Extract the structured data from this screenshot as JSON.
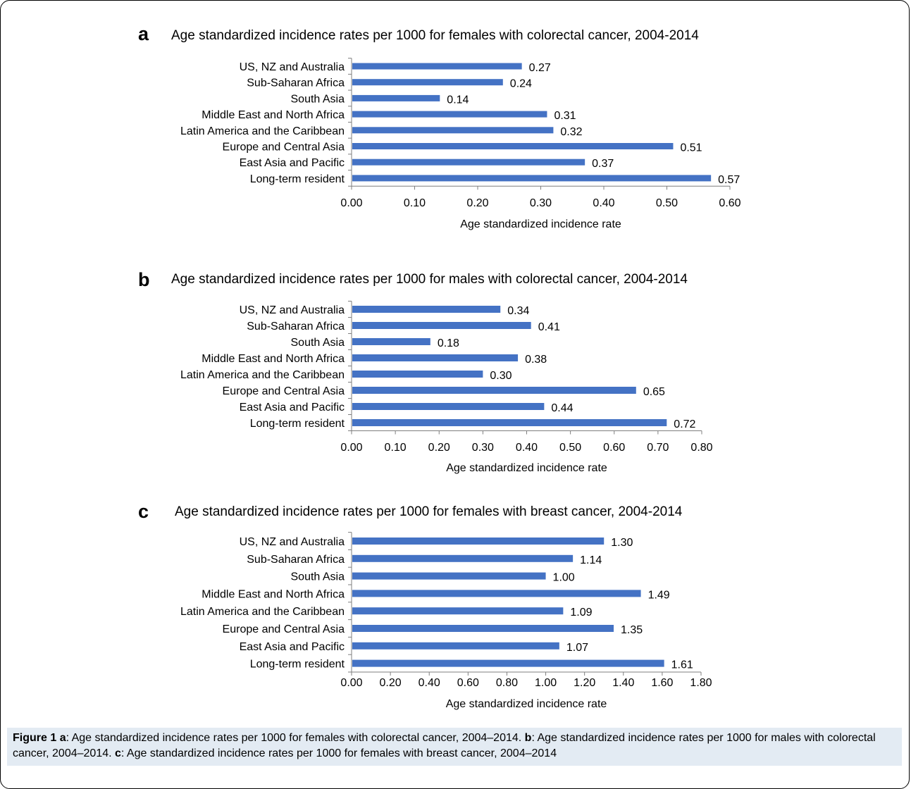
{
  "chart_data": [
    {
      "type": "bar",
      "orientation": "horizontal",
      "panel": "a",
      "title": "Age standardized incidence rates per 1000 for females with colorectal cancer, 2004-2014",
      "xlabel": "Age standardized incidence rate",
      "categories": [
        "US, NZ and Australia",
        "Sub-Saharan Africa",
        "South Asia",
        "Middle East and North Africa",
        "Latin America and the Caribbean",
        "Europe and Central Asia",
        "East Asia and Pacific",
        "Long-term resident"
      ],
      "values": [
        0.27,
        0.24,
        0.14,
        0.31,
        0.32,
        0.51,
        0.37,
        0.57
      ],
      "value_labels": [
        "0.27",
        "0.24",
        "0.14",
        "0.31",
        "0.32",
        "0.51",
        "0.37",
        "0.57"
      ],
      "xlim": [
        0,
        0.6
      ],
      "ticks": [
        "0.00",
        "0.10",
        "0.20",
        "0.30",
        "0.40",
        "0.50",
        "0.60"
      ],
      "grid": false,
      "legend": "none",
      "bar_color": "#4472c4"
    },
    {
      "type": "bar",
      "orientation": "horizontal",
      "panel": "b",
      "title": "Age standardized incidence rates per 1000 for males with colorectal cancer, 2004-2014",
      "xlabel": "Age standardized incidence rate",
      "categories": [
        "US, NZ and Australia",
        "Sub-Saharan Africa",
        "South Asia",
        "Middle East and North Africa",
        "Latin America and the Caribbean",
        "Europe and Central Asia",
        "East Asia and Pacific",
        "Long-term resident"
      ],
      "values": [
        0.34,
        0.41,
        0.18,
        0.38,
        0.3,
        0.65,
        0.44,
        0.72
      ],
      "value_labels": [
        "0.34",
        "0.41",
        "0.18",
        "0.38",
        "0.30",
        "0.65",
        "0.44",
        "0.72"
      ],
      "xlim": [
        0,
        0.8
      ],
      "ticks": [
        "0.00",
        "0.10",
        "0.20",
        "0.30",
        "0.40",
        "0.50",
        "0.60",
        "0.70",
        "0.80"
      ],
      "grid": false,
      "legend": "none",
      "bar_color": "#4472c4"
    },
    {
      "type": "bar",
      "orientation": "horizontal",
      "panel": "c",
      "title": "Age standardized incidence rates per 1000 for females with breast cancer, 2004-2014",
      "xlabel": "Age standardized incidence rate",
      "categories": [
        "US, NZ and Australia",
        "Sub-Saharan Africa",
        "South Asia",
        "Middle East and North Africa",
        "Latin America and the Caribbean",
        "Europe and Central Asia",
        "East Asia and Pacific",
        "Long-term resident"
      ],
      "values": [
        1.3,
        1.14,
        1.0,
        1.49,
        1.09,
        1.35,
        1.07,
        1.61
      ],
      "value_labels": [
        "1.30",
        "1.14",
        "1.00",
        "1.49",
        "1.09",
        "1.35",
        "1.07",
        "1.61"
      ],
      "xlim": [
        0,
        1.8
      ],
      "ticks": [
        "0.00",
        "0.20",
        "0.40",
        "0.60",
        "0.80",
        "1.00",
        "1.20",
        "1.40",
        "1.60",
        "1.80"
      ],
      "grid": false,
      "legend": "none",
      "bar_color": "#4472c4"
    }
  ],
  "caption": {
    "label": "Figure 1",
    "a_letter": "a",
    "a_text": ": Age standardized incidence rates per 1000 for females with colorectal cancer, 2004–2014. ",
    "b_letter": "b",
    "b_text": ": Age standardized incidence rates per 1000 for males with colorectal cancer, 2004–2014. ",
    "c_letter": "c",
    "c_text": ": Age standardized incidence rates per 1000 for females with breast cancer, 2004–2014"
  }
}
